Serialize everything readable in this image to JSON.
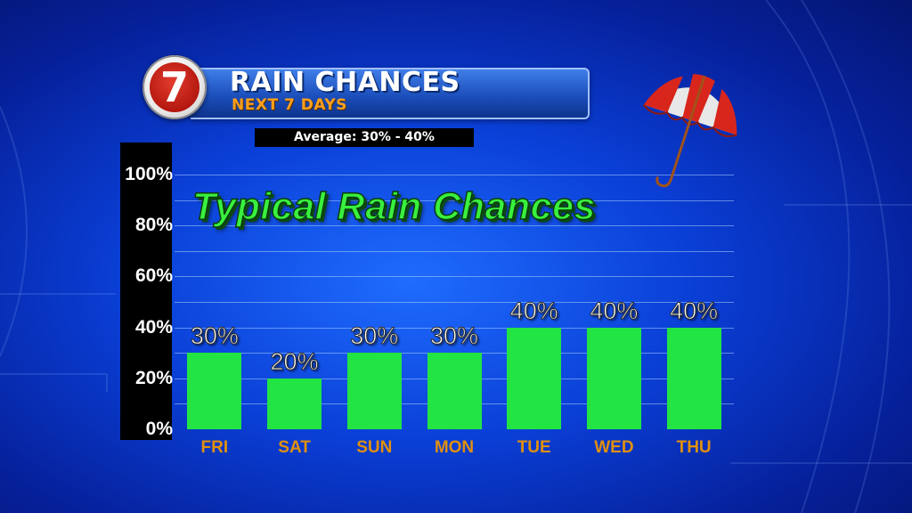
{
  "header": {
    "logo_text": "7",
    "title": "RAIN CHANCES",
    "subtitle": "NEXT 7 DAYS",
    "average_label": "Average: 30% - 40%"
  },
  "annotation": "Typical Rain Chances",
  "decorations": {
    "umbrella": "umbrella-icon"
  },
  "colors": {
    "bar": "#22e544",
    "category_text": "#e0900e",
    "subtitle_text": "#ff9f1a",
    "logo_red": "#c01a10",
    "background": "#0a3fd6"
  },
  "chart_data": {
    "type": "bar",
    "categories": [
      "FRI",
      "SAT",
      "SUN",
      "MON",
      "TUE",
      "WED",
      "THU"
    ],
    "values": [
      30,
      20,
      30,
      30,
      40,
      40,
      40
    ],
    "value_labels": [
      "30%",
      "20%",
      "30%",
      "30%",
      "40%",
      "40%",
      "40%"
    ],
    "yticks": [
      "0%",
      "20%",
      "40%",
      "60%",
      "80%",
      "100%"
    ],
    "ytick_values": [
      0,
      20,
      40,
      60,
      80,
      100
    ],
    "ylim": [
      0,
      100
    ],
    "grid": true,
    "legend": "none"
  }
}
